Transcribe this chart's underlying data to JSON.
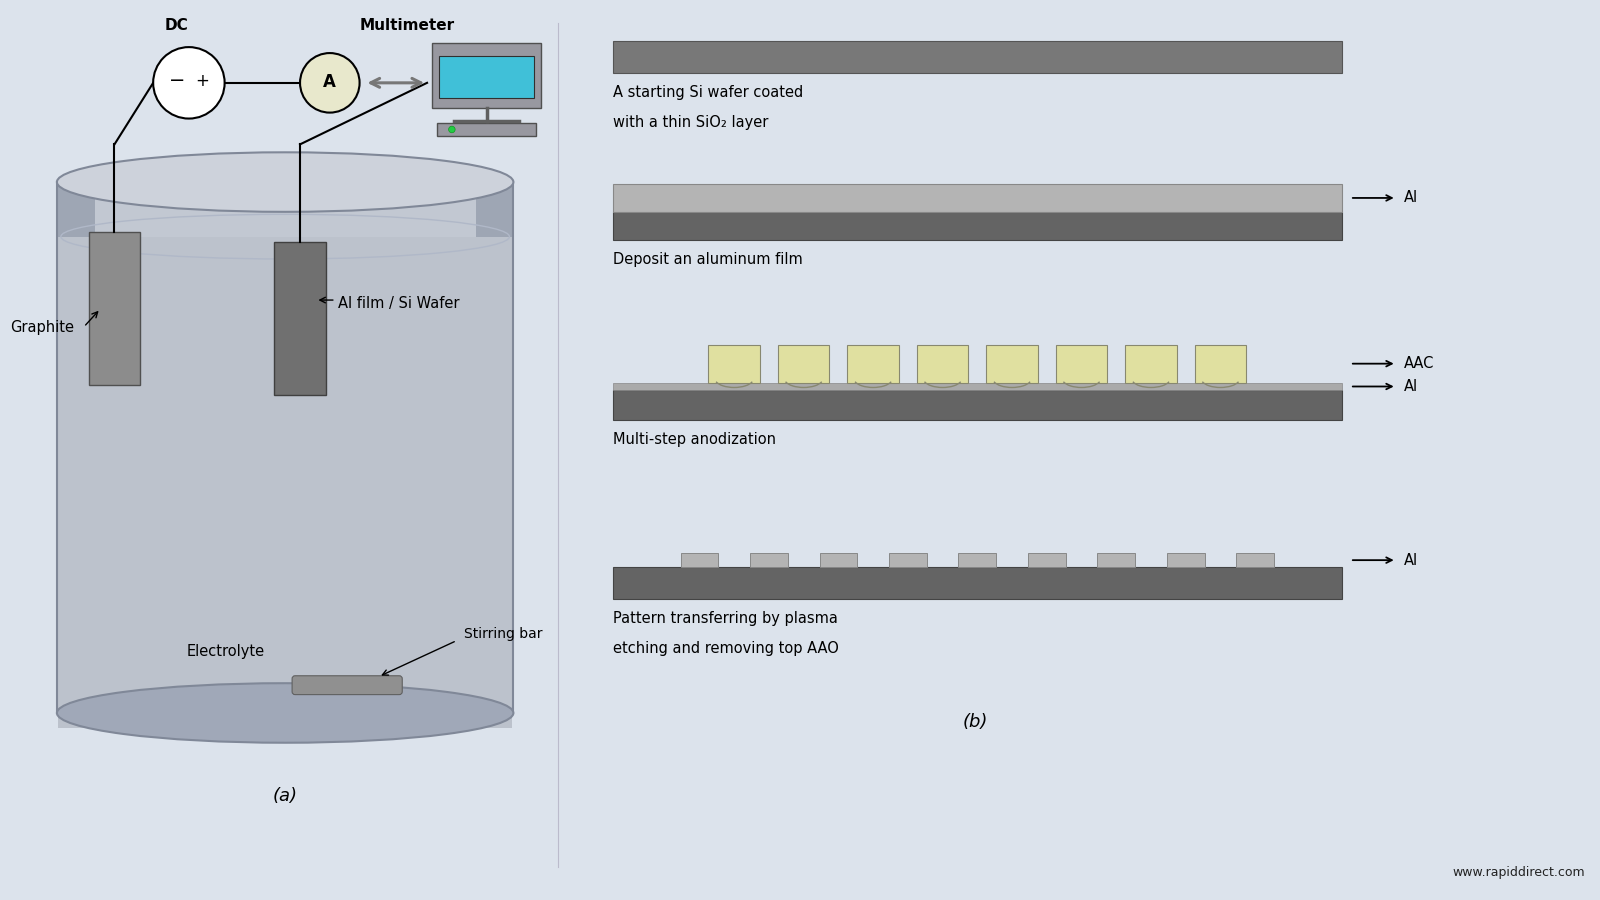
{
  "bg_color": "#dce3ec",
  "title_a": "(a)",
  "title_b": "(b)",
  "website": "www.rapiddirect.com",
  "step1_label_1": "A starting Si wafer coated",
  "step1_label_2": "with a thin SiO₂ layer",
  "step2_label": "Deposit an aluminum film",
  "step3_label": "Multi-step anodization",
  "step4_label_1": "Pattern transferring by plasma",
  "step4_label_2": "etching and removing top AAO",
  "dc_label": "DC",
  "multimeter_label": "Multimeter",
  "graphite_label": "Graphite",
  "al_film_label": "Al film / Si Wafer",
  "stirring_label": "Stirring bar",
  "electrolyte_label": "Electrolyte",
  "color_dark_gray": "#606060",
  "color_mid_gray": "#888888",
  "color_light_gray": "#b0b0b0",
  "color_silver": "#c8c8c8",
  "color_pale_yellow": "#e8e8a8",
  "color_tank_body": "#c0c5ce",
  "color_tank_dark": "#9098a8"
}
